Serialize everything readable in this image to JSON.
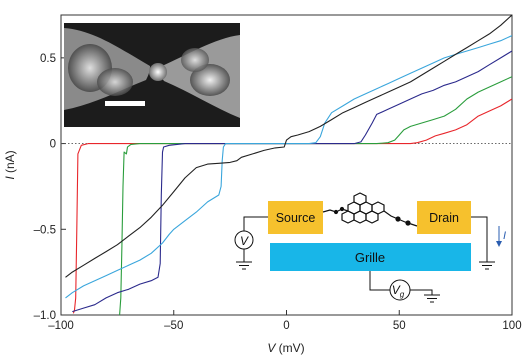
{
  "chart_data": {
    "type": "line",
    "title": "",
    "xlabel_var": "V",
    "xlabel_unit": " (mV)",
    "ylabel_var": "I",
    "ylabel_unit": " (nA)",
    "xlim": [
      -100,
      100
    ],
    "ylim": [
      -1.0,
      0.75
    ],
    "x_ticks": [
      -100,
      -50,
      0,
      50,
      100
    ],
    "x_tick_labels": [
      "–100",
      "–50",
      "0",
      "50",
      "100"
    ],
    "y_ticks": [
      -1.0,
      -0.5,
      0,
      0.5
    ],
    "y_tick_labels": [
      "–1.0",
      "–0.5",
      "0",
      "0.5"
    ],
    "zero_line": "dotted",
    "grid": false,
    "legend": "none",
    "series": [
      {
        "color": "#e8262b",
        "x": [
          -94.5,
          -94,
          -93.5,
          -93,
          -92.5,
          -91,
          -88,
          -80,
          -60,
          -40,
          -20,
          0,
          20,
          40,
          55,
          58,
          62,
          66,
          70,
          75,
          80,
          85,
          90,
          95,
          100
        ],
        "y": [
          -0.99,
          -0.97,
          -0.9,
          -0.5,
          -0.06,
          -0.01,
          0,
          0,
          0,
          0,
          0,
          0,
          0,
          0,
          0,
          0.005,
          0.02,
          0.045,
          0.06,
          0.08,
          0.11,
          0.16,
          0.19,
          0.22,
          0.26
        ]
      },
      {
        "color": "#2a9d3c",
        "x": [
          -74,
          -73.5,
          -73,
          -72.5,
          -72,
          -71,
          -70.5,
          -69,
          -65,
          -50,
          -30,
          -10,
          0,
          10,
          30,
          40,
          45,
          48,
          50,
          52,
          55,
          60,
          65,
          70,
          75,
          80,
          85,
          90,
          95,
          100
        ],
        "y": [
          -1.0,
          -0.9,
          -0.6,
          -0.25,
          -0.05,
          -0.06,
          -0.02,
          -0.005,
          0,
          0,
          0,
          0,
          0,
          0,
          0,
          0,
          0.005,
          0.02,
          0.05,
          0.08,
          0.1,
          0.12,
          0.14,
          0.16,
          0.2,
          0.26,
          0.3,
          0.33,
          0.36,
          0.39
        ]
      },
      {
        "color": "#2b2a8c",
        "x": [
          -95,
          -90,
          -85,
          -80,
          -75,
          -70,
          -65,
          -60,
          -57,
          -56,
          -55.5,
          -55,
          -54.5,
          -52,
          -45,
          -40,
          -35,
          -30,
          -20,
          -10,
          0,
          10,
          20,
          30,
          33,
          35,
          38,
          40,
          45,
          50,
          55,
          60,
          65,
          70,
          75,
          80,
          85,
          90,
          95,
          100
        ],
        "y": [
          -0.98,
          -0.96,
          -0.94,
          -0.9,
          -0.87,
          -0.85,
          -0.82,
          -0.8,
          -0.78,
          -0.7,
          -0.3,
          -0.05,
          -0.02,
          -0.01,
          0,
          0,
          0,
          0,
          0,
          0,
          0,
          0,
          0,
          0,
          0.01,
          0.05,
          0.12,
          0.17,
          0.2,
          0.23,
          0.26,
          0.29,
          0.31,
          0.34,
          0.36,
          0.39,
          0.42,
          0.46,
          0.5,
          0.54
        ]
      },
      {
        "color": "#3aa6dc",
        "x": [
          -98,
          -95,
          -90,
          -85,
          -80,
          -75,
          -70,
          -65,
          -60,
          -55,
          -52,
          -50,
          -45,
          -40,
          -35,
          -30,
          -29,
          -28.5,
          -28,
          -27,
          -25,
          -20,
          -10,
          0,
          5,
          10,
          13,
          15,
          17,
          20,
          25,
          30,
          35,
          40,
          45,
          50,
          55,
          60,
          65,
          70,
          75,
          80,
          85,
          90,
          95,
          100
        ],
        "y": [
          -0.9,
          -0.87,
          -0.83,
          -0.8,
          -0.77,
          -0.74,
          -0.71,
          -0.68,
          -0.64,
          -0.58,
          -0.53,
          -0.5,
          -0.45,
          -0.4,
          -0.34,
          -0.3,
          -0.25,
          -0.1,
          -0.02,
          0,
          0,
          0,
          0,
          0,
          0,
          0,
          0.005,
          0.04,
          0.12,
          0.18,
          0.22,
          0.26,
          0.29,
          0.32,
          0.35,
          0.38,
          0.41,
          0.44,
          0.47,
          0.5,
          0.52,
          0.54,
          0.56,
          0.58,
          0.6,
          0.63
        ]
      },
      {
        "color": "#222222",
        "x": [
          -98,
          -95,
          -90,
          -85,
          -80,
          -75,
          -70,
          -65,
          -60,
          -55,
          -50,
          -45,
          -40,
          -35,
          -30,
          -25,
          -22,
          -20,
          -15,
          -10,
          -5,
          -1,
          0,
          2,
          5,
          10,
          15,
          20,
          25,
          30,
          35,
          40,
          45,
          50,
          55,
          60,
          65,
          70,
          75,
          80,
          85,
          90,
          95,
          100
        ],
        "y": [
          -0.78,
          -0.75,
          -0.71,
          -0.67,
          -0.63,
          -0.59,
          -0.54,
          -0.49,
          -0.43,
          -0.36,
          -0.28,
          -0.2,
          -0.14,
          -0.12,
          -0.115,
          -0.11,
          -0.1,
          -0.08,
          -0.06,
          -0.04,
          -0.025,
          -0.02,
          0.02,
          0.04,
          0.05,
          0.07,
          0.1,
          0.14,
          0.18,
          0.21,
          0.24,
          0.27,
          0.3,
          0.33,
          0.36,
          0.4,
          0.44,
          0.48,
          0.52,
          0.56,
          0.6,
          0.64,
          0.69,
          0.75
        ]
      }
    ]
  },
  "inset": {
    "source_label": "Source",
    "drain_label": "Drain",
    "grille_label": "Grille",
    "voltmeter_label": "V",
    "gate_label_var": "V",
    "gate_label_sub": "g",
    "current_label": "I",
    "gold_color": "#f6c12d",
    "gate_color": "#18b6e8"
  }
}
